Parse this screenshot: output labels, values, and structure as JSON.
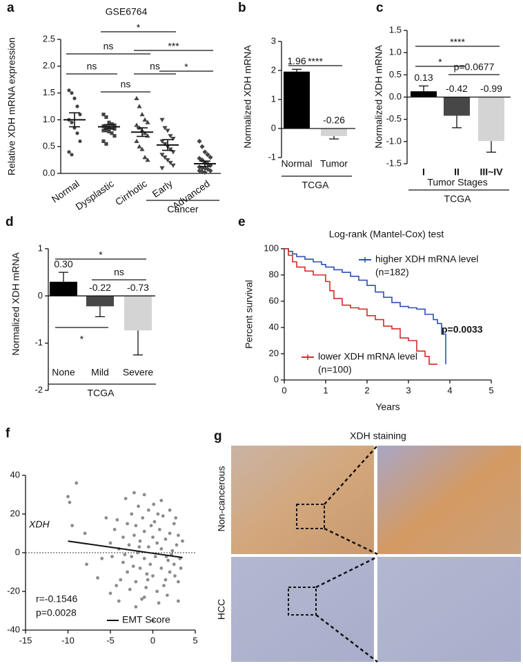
{
  "chart_data": [
    {
      "label": "a",
      "type": "strip",
      "title": "GSE6764",
      "ylabel": "Relative XDH mRNA expression",
      "categories": [
        "Normal",
        "Dysplastic",
        "Cirrhotic",
        "Early",
        "Advanced"
      ],
      "values": [
        1.0,
        0.87,
        0.77,
        0.53,
        0.18
      ],
      "errors": [
        0.13,
        0.04,
        0.08,
        0.1,
        0.05
      ],
      "points": [
        [
          1.55,
          1.5,
          1.4,
          1.25,
          1.1,
          1.0,
          0.95,
          0.85,
          0.75,
          0.6,
          0.4,
          0.35
        ],
        [
          1.1,
          1.05,
          0.95,
          0.92,
          0.9,
          0.88,
          0.87,
          0.85,
          0.85,
          0.83,
          0.8,
          0.8,
          0.78,
          0.75,
          0.7,
          0.6,
          0.55
        ],
        [
          1.4,
          1.25,
          1.1,
          1.0,
          0.95,
          0.9,
          0.85,
          0.8,
          0.75,
          0.7,
          0.6,
          0.5,
          0.45,
          0.3,
          0.25
        ],
        [
          1.0,
          0.85,
          0.8,
          0.7,
          0.65,
          0.6,
          0.55,
          0.5,
          0.45,
          0.4,
          0.35,
          0.3,
          0.25,
          0.2,
          0.15,
          0.1
        ],
        [
          0.6,
          0.5,
          0.4,
          0.35,
          0.3,
          0.28,
          0.25,
          0.2,
          0.18,
          0.15,
          0.12,
          0.1,
          0.1,
          0.08,
          0.05,
          0.05,
          0.03,
          0.02
        ]
      ],
      "ylim": [
        0,
        2.5
      ],
      "yticks": [
        {
          "value": 0,
          "label": "0.0"
        },
        0.5,
        {
          "value": 1,
          "label": "1.0"
        },
        1.5,
        {
          "value": 2,
          "label": "2.0"
        },
        2.5
      ],
      "group": "Cancer",
      "annotations": [
        "*",
        "ns",
        "***",
        "ns",
        "ns",
        "*",
        "ns"
      ]
    },
    {
      "label": "b",
      "type": "bar",
      "ylabel": "Normalized XDH mRNA",
      "categories": [
        "Normal",
        "Tumor"
      ],
      "values": [
        1.96,
        -0.26
      ],
      "errors": [
        0.08,
        0.1
      ],
      "colors": [
        "#000000",
        "#d4d4d4"
      ],
      "ylim": [
        -1,
        3
      ],
      "yticks": [
        -1,
        0,
        1,
        2,
        3
      ],
      "group": "TCGA",
      "annotations": [
        "****"
      ]
    },
    {
      "label": "c",
      "type": "bar",
      "ylabel": "Normalized XDH mRNA",
      "categories": [
        "I",
        "II",
        "III~IV"
      ],
      "values": [
        0.13,
        -0.42,
        -0.99
      ],
      "errors": [
        0.12,
        0.27,
        0.25
      ],
      "colors": [
        "#000000",
        "#474747",
        "#d4d4d4"
      ],
      "ylim": [
        -1.5,
        1.5
      ],
      "yticks": [
        -1.5,
        {
          "value": -1,
          "label": "-1.0"
        },
        -0.5,
        {
          "value": 0,
          "label": "0.0"
        },
        0.5,
        {
          "value": 1,
          "label": "1.0"
        },
        1.5
      ],
      "xlabel": "Tumor Stages",
      "group": "TCGA",
      "annotations": [
        "****",
        "*",
        "p=0.0677"
      ]
    },
    {
      "label": "d",
      "type": "bar",
      "ylabel": "Normalized XDH mRNA",
      "categories": [
        "None",
        "Mild",
        "Severe"
      ],
      "values": [
        0.3,
        -0.22,
        -0.73
      ],
      "value_labels": [
        "0.30",
        "-0.22",
        "-0.73"
      ],
      "errors": [
        0.2,
        0.22,
        0.52
      ],
      "colors": [
        "#000000",
        "#474747",
        "#d4d4d4"
      ],
      "ylim": [
        -2,
        1
      ],
      "yticks": [
        -2,
        -1,
        0,
        1
      ],
      "group": "TCGA",
      "annotations": [
        "*",
        "ns",
        "*"
      ]
    },
    {
      "label": "e",
      "type": "line",
      "step": true,
      "title": "Log-rank (Mantel-Cox) test",
      "xlabel": "Years",
      "ylabel": "Percent survival",
      "series": [
        {
          "name": "higher XDH mRNA level",
          "note": "(n=182)",
          "color": "#2e4fb3",
          "x": [
            0,
            0.1,
            0.2,
            0.3,
            0.5,
            0.7,
            0.9,
            1.0,
            1.2,
            1.4,
            1.6,
            1.8,
            2.0,
            2.2,
            2.4,
            2.6,
            2.8,
            3.0,
            3.2,
            3.4,
            3.6,
            3.7,
            3.8,
            3.9
          ],
          "values": [
            100,
            98,
            96,
            94,
            92,
            90,
            88,
            86,
            84,
            82,
            79,
            76,
            72,
            67,
            63,
            59,
            56,
            55,
            54,
            50,
            46,
            43,
            35,
            12
          ]
        },
        {
          "name": "lower XDH mRNA level",
          "note": "(n=100)",
          "color": "#d42a2a",
          "x": [
            0,
            0.1,
            0.2,
            0.3,
            0.5,
            0.7,
            0.9,
            1.0,
            1.1,
            1.2,
            1.4,
            1.6,
            1.8,
            2.0,
            2.2,
            2.4,
            2.6,
            2.8,
            3.0,
            3.2,
            3.4,
            3.5,
            3.7
          ],
          "values": [
            100,
            95,
            90,
            86,
            83,
            80,
            80,
            75,
            68,
            62,
            57,
            55,
            54,
            49,
            46,
            41,
            39,
            32,
            30,
            22,
            18,
            12,
            12
          ]
        }
      ],
      "xlim": [
        0,
        5
      ],
      "ylim": [
        0,
        100
      ],
      "xticks": [
        0,
        1,
        2,
        3,
        4,
        5
      ],
      "yticks": [
        0,
        20,
        40,
        60,
        80,
        100
      ],
      "annotations": [
        "p=0.0033"
      ]
    },
    {
      "label": "f",
      "type": "scatter",
      "color": "#8c8c8c",
      "x": [
        -9,
        -10,
        -9.8,
        -9.5,
        -8,
        -7.8,
        -6.5,
        -5,
        -4.2,
        -4,
        -3.2,
        -2.2,
        -1,
        1,
        2,
        -2,
        0,
        3,
        -1,
        -5,
        -4.5,
        -4,
        -3.5,
        -3.5,
        -3,
        -3,
        -2.8,
        -2.5,
        -2.5,
        -2.2,
        -2,
        -2,
        -1.8,
        -1.5,
        -1.5,
        -1.2,
        -1,
        -1,
        -0.8,
        -0.5,
        -0.5,
        -0.3,
        0,
        0,
        0.2,
        0.3,
        0.5,
        0.5,
        0.8,
        1,
        1,
        1.2,
        1.5,
        1.5,
        1.8,
        2,
        2,
        2.3,
        2.5,
        2.5,
        2.8,
        3,
        3,
        3.2,
        3.5,
        -4.8,
        -3.8,
        -2.7,
        -1.7,
        -0.7,
        0.7,
        1.7,
        2.7,
        -6,
        -5.5,
        -4.3,
        -1.3,
        0.1,
        1.3,
        -3.3,
        -2.3,
        -0.2,
        2.2,
        3.3,
        -1.6,
        -0.6,
        0.6,
        1.6,
        2.6
      ],
      "values": [
        36,
        29,
        26,
        14,
        10,
        -6,
        -13,
        -21,
        17,
        -25,
        28,
        31,
        30,
        27,
        22,
        -28,
        -35,
        -25,
        -23,
        5,
        12,
        2,
        8,
        -5,
        15,
        -10,
        4,
        20,
        -2,
        9,
        -15,
        14,
        0,
        6,
        -8,
        18,
        -3,
        11,
        -18,
        3,
        22,
        -6,
        8,
        -12,
        16,
        -2,
        5,
        -20,
        12,
        -8,
        2,
        19,
        -14,
        7,
        -4,
        10,
        -10,
        1,
        15,
        -6,
        4,
        -15,
        9,
        -3,
        6,
        -2,
        -14,
        -19,
        24,
        -11,
        -26,
        -22,
        18,
        -3,
        18,
        -17,
        -24,
        25,
        -17,
        -1,
        -7,
        14,
        -1,
        -8,
        3,
        -14,
        20,
        -2,
        -12
      ],
      "fit": {
        "name": "EMT Score",
        "x": [
          -10,
          3.5
        ],
        "values": [
          6,
          -2.5
        ]
      },
      "xlim": [
        -15,
        5
      ],
      "ylim": [
        -40,
        40
      ],
      "xticks": [
        -15,
        -10,
        -5,
        0,
        5
      ],
      "yticks": [
        -40,
        -20,
        0,
        20,
        40
      ],
      "zero_line": true,
      "annotations": [
        "XDH",
        "r=-0.1546",
        "p=0.0028"
      ]
    }
  ],
  "panel_g": {
    "label": "g",
    "title": "XDH staining",
    "rows": [
      "Non-cancerous",
      "HCC"
    ]
  }
}
